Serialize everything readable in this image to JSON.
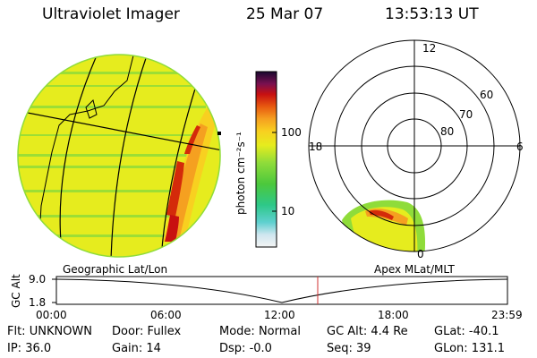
{
  "header": {
    "title": "Ultraviolet Imager",
    "date": "25 Mar 07",
    "time": "13:53:13 UT"
  },
  "colorbar": {
    "unit_label": "photon cm⁻²s⁻¹",
    "ticks": [
      "100",
      "10"
    ]
  },
  "polar_plot": {
    "mlt_labels": {
      "top": "12",
      "left": "18",
      "right": "6",
      "bottom": "0"
    },
    "lat_labels": [
      "60",
      "70",
      "80"
    ]
  },
  "map_labels": {
    "geographic": "Geographic Lat/Lon",
    "apex": "Apex MLat/MLT"
  },
  "altitude_plot": {
    "ylabel": "GC Alt",
    "yticks": [
      "9.0",
      "1.8"
    ],
    "xticks": [
      "00:00",
      "06:00",
      "12:00",
      "18:00",
      "23:59"
    ],
    "marker_time": "13:53"
  },
  "info": {
    "row1": [
      {
        "label": "Flt: ",
        "value": "UNKNOWN"
      },
      {
        "label": "Door: ",
        "value": "Fullex"
      },
      {
        "label": "Mode: ",
        "value": "Normal"
      },
      {
        "label": "GC Alt: ",
        "value": "4.4 Re"
      },
      {
        "label": "GLat: ",
        "value": "-40.1"
      }
    ],
    "row2": [
      {
        "label": "IP: ",
        "value": "36.0"
      },
      {
        "label": "Gain: ",
        "value": "14"
      },
      {
        "label": "Dsp: ",
        "value": "-0.0"
      },
      {
        "label": "Seq: ",
        "value": "39"
      },
      {
        "label": "GLon: ",
        "value": "131.1"
      }
    ]
  },
  "colors": {
    "background_fill": "#e6ec1e",
    "stripe": "#8fdc3a",
    "aurora_orange": "#f5a020",
    "aurora_red": "#d42a0a",
    "marker_line": "#d03030"
  }
}
